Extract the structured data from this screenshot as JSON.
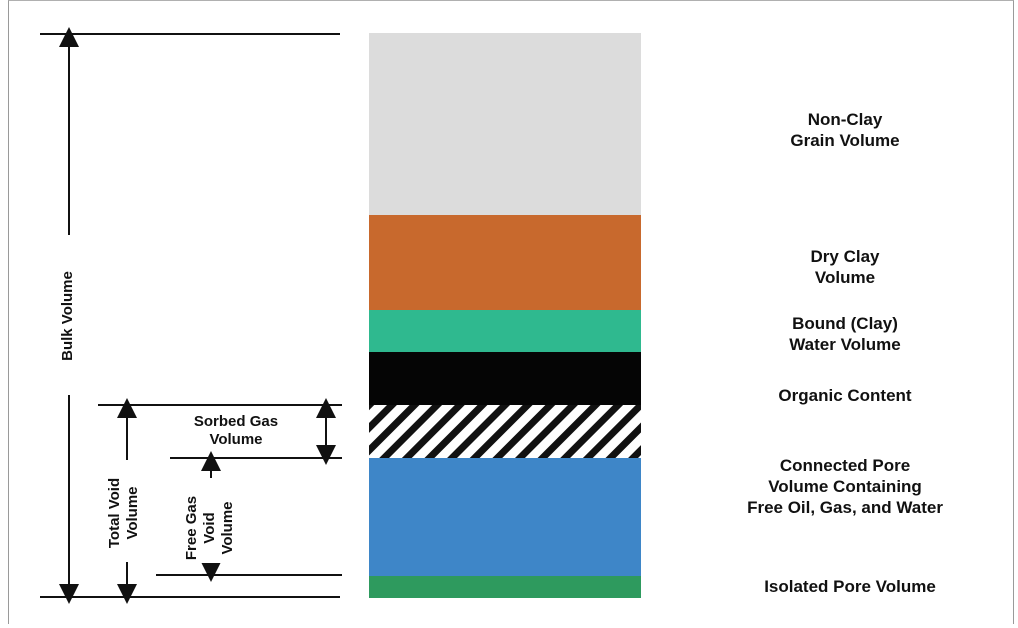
{
  "layers": [
    {
      "id": "non-clay",
      "label": "Non-Clay\nGrain Volume",
      "color": "#dcdcdc"
    },
    {
      "id": "dry-clay",
      "label": "Dry Clay\nVolume",
      "color": "#c8692d"
    },
    {
      "id": "bound-water",
      "label": "Bound (Clay)\nWater Volume",
      "color": "#2fb98f"
    },
    {
      "id": "organic",
      "label": "Organic Content",
      "color": "#050505"
    },
    {
      "id": "sorbed-gas",
      "label": "",
      "color": "#ffffff",
      "pattern": "hatch"
    },
    {
      "id": "connected-pore",
      "label": "Connected Pore\nVolume Containing\nFree Oil, Gas, and Water",
      "color": "#3e86c8"
    },
    {
      "id": "isolated-pore",
      "label": "Isolated Pore Volume",
      "color": "#2e9a5e"
    }
  ],
  "dimensions": {
    "bulk": "Bulk Volume",
    "total_void": "Total Void\nVolume",
    "sorbed_gas": "Sorbed Gas\nVolume",
    "free_gas": "Free Gas\nVoid\nVolume"
  }
}
